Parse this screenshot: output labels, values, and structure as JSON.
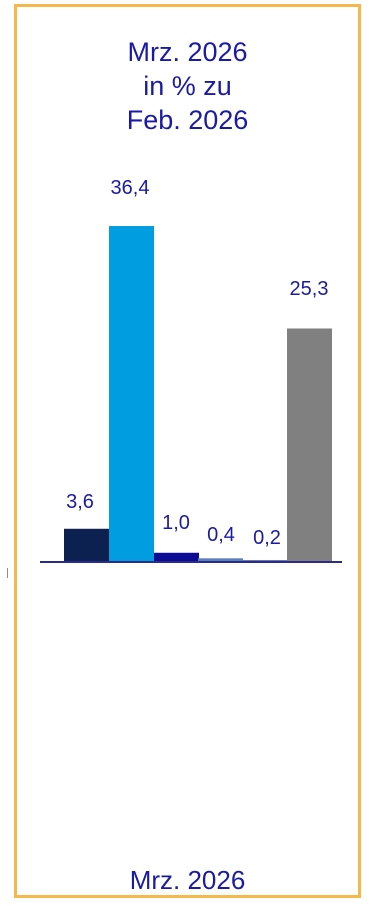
{
  "header": {
    "title_lines": [
      "Mrz. 2026",
      "in % zu",
      "Feb. 2026"
    ]
  },
  "footer": {
    "label": "Mrz. 2026"
  },
  "colors": {
    "frame": "#f7b84a",
    "text": "#1a1aa6",
    "axis": "#2b2b8a"
  },
  "chart_data": {
    "type": "bar",
    "title": "Mrz. 2026 in % zu Feb. 2026",
    "categories": [
      "",
      "",
      "",
      "",
      "",
      ""
    ],
    "values": [
      3.6,
      36.4,
      1.0,
      0.4,
      0.2,
      25.3
    ],
    "value_labels": [
      "3,6",
      "36,4",
      "1,0",
      "0,4",
      "0,2",
      "25,3"
    ],
    "bar_colors": [
      "#0d2150",
      "#009ee0",
      "#0b0b94",
      "#5b7fb8",
      "#4a5fa0",
      "#808080"
    ],
    "xlabel": "",
    "ylabel": "",
    "ylim": [
      0,
      40
    ],
    "grid": false
  }
}
